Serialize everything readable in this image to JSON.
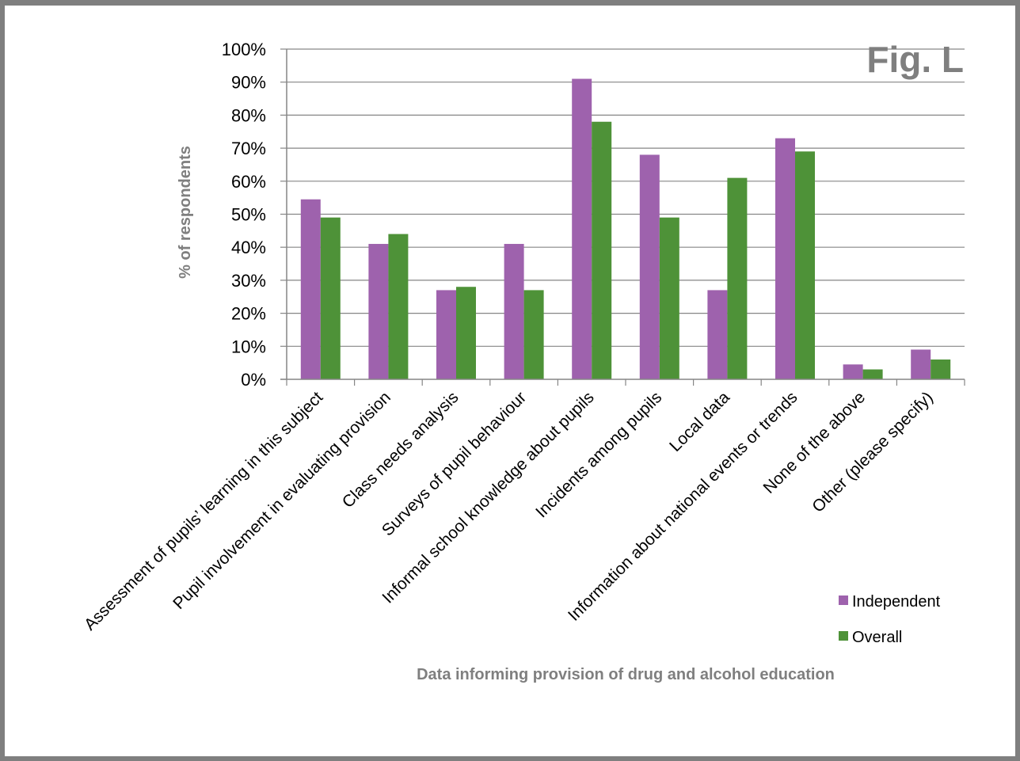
{
  "chart_data": {
    "type": "bar",
    "fig_label": "Fig. L",
    "xlabel": "Data informing provision of drug and alcohol education",
    "ylabel": "% of respondents",
    "ylim": [
      0,
      100
    ],
    "yticks": [
      "0%",
      "10%",
      "20%",
      "30%",
      "40%",
      "50%",
      "60%",
      "70%",
      "80%",
      "90%",
      "100%"
    ],
    "grid": true,
    "legend_position": "bottom-right",
    "categories": [
      "Assessment of pupils’ learning in this subject",
      "Pupil involvement in evaluating provision",
      "Class needs analysis",
      "Surveys of pupil behaviour",
      "Informal school knowledge about pupils",
      "Incidents among pupils",
      "Local data",
      "Information about national events or trends",
      "None of the above",
      "Other (please specify)"
    ],
    "series": [
      {
        "name": "Independent",
        "color": "#9e62ad",
        "values": [
          54.5,
          41,
          27,
          41,
          91,
          68,
          27,
          73,
          4.5,
          9
        ]
      },
      {
        "name": "Overall",
        "color": "#4e9238",
        "values": [
          49,
          44,
          28,
          27,
          78,
          49,
          61,
          69,
          3,
          6
        ]
      }
    ]
  }
}
